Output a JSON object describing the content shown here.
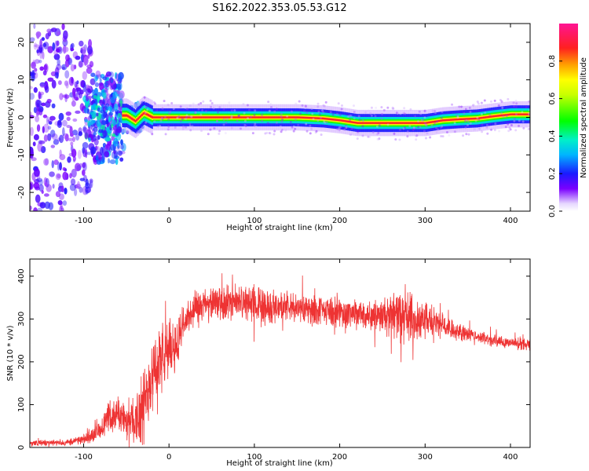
{
  "title": "S162.2022.353.05.53.G12",
  "chart_data": [
    {
      "type": "heatmap",
      "xlabel": "Height of straight line (km)",
      "ylabel": "Frequency (Hz)",
      "xlim": [
        -163,
        423
      ],
      "ylim": [
        -25,
        25
      ],
      "xticks": [
        -100,
        0,
        100,
        200,
        300,
        400
      ],
      "yticks": [
        -20,
        -10,
        0,
        10,
        20
      ],
      "colorbar": {
        "label": "Normalized spectral amplitude",
        "range": [
          0,
          1
        ],
        "ticks": [
          "0.0",
          "0.2",
          "0.4",
          "0.6",
          "0.8"
        ],
        "colormap": "rainbow: white-violet-blue-cyan-green-yellow-orange-red-magenta"
      },
      "ridge": {
        "x": [
          -50,
          -40,
          -30,
          -20,
          0,
          50,
          100,
          150,
          180,
          200,
          220,
          260,
          300,
          320,
          340,
          360,
          380,
          400,
          420
        ],
        "freq": [
          0.5,
          -1.0,
          1.2,
          0.0,
          0.0,
          0.0,
          0.0,
          0.0,
          -0.3,
          -0.8,
          -1.5,
          -1.5,
          -1.5,
          -0.8,
          -0.5,
          -0.3,
          0.3,
          0.8,
          0.8
        ]
      }
    },
    {
      "type": "line",
      "xlabel": "Height of straight line (km)",
      "ylabel": "SNR (10 * v/v)",
      "xlim": [
        -163,
        423
      ],
      "ylim": [
        0,
        440
      ],
      "xticks": [
        -100,
        0,
        100,
        200,
        300,
        400
      ],
      "yticks": [
        0,
        100,
        200,
        300,
        400
      ],
      "color": "#ee3333",
      "envelope": {
        "x": [
          -163,
          -120,
          -100,
          -80,
          -70,
          -60,
          -50,
          -40,
          -30,
          -20,
          -10,
          0,
          10,
          20,
          30,
          50,
          80,
          100,
          150,
          200,
          250,
          280,
          300,
          320,
          350,
          380,
          400,
          423
        ],
        "mean": [
          10,
          12,
          18,
          40,
          70,
          80,
          60,
          70,
          90,
          180,
          200,
          230,
          250,
          300,
          320,
          335,
          340,
          335,
          325,
          315,
          310,
          305,
          300,
          285,
          265,
          250,
          245,
          240
        ],
        "spread": [
          5,
          5,
          8,
          15,
          30,
          30,
          30,
          45,
          60,
          70,
          60,
          50,
          40,
          30,
          30,
          30,
          30,
          30,
          25,
          25,
          30,
          45,
          30,
          22,
          12,
          10,
          10,
          10
        ]
      }
    }
  ]
}
